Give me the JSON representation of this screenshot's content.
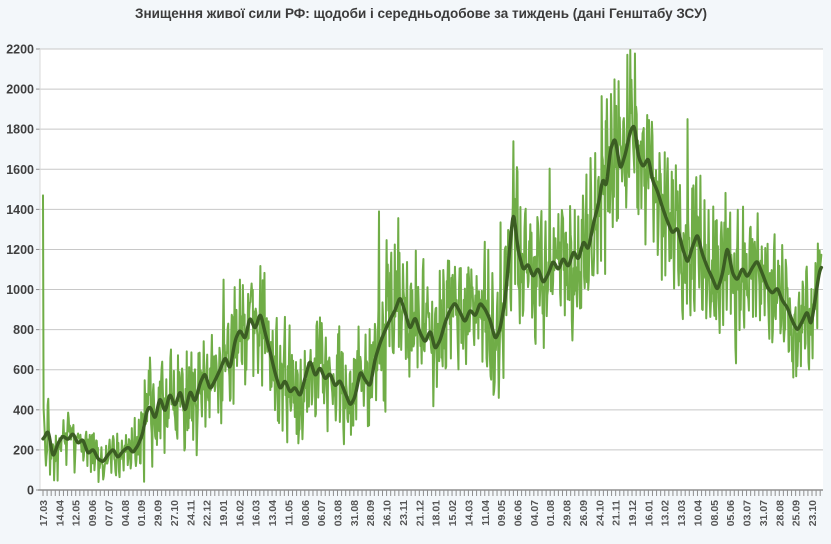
{
  "title": "Знищення живої сили РФ: щодоби і середньодобове за тиждень (дані Генштабу ЗСУ)",
  "colors": {
    "daily_line": "#70ad47",
    "average_line": "#3b5d23",
    "gridline": "#c8c8c8",
    "axis": "#8f8f8f",
    "plot_background": "#ffffff",
    "page_background": "#f3f7fa",
    "y_label": "#3f3f3f",
    "x_label": "#555555",
    "title_text": "#3b3b3b"
  },
  "chart_data": {
    "type": "line",
    "title": "Знищення живої сили РФ: щодоби і середньодобове за тиждень (дані Генштабу ЗСУ)",
    "xlabel": "",
    "ylabel": "",
    "ylim": [
      0,
      2200
    ],
    "y_ticks": [
      0,
      200,
      400,
      600,
      800,
      1000,
      1200,
      1400,
      1600,
      1800,
      2000,
      2200
    ],
    "grid": "horizontal",
    "legend": "none",
    "x_tick_labels": [
      "17.03",
      "14.04",
      "12.05",
      "09.06",
      "07.07",
      "04.08",
      "01.09",
      "29.09",
      "27.10",
      "24.11",
      "22.12",
      "19.01",
      "16.02",
      "16.03",
      "13.04",
      "11.05",
      "08.06",
      "06.07",
      "03.08",
      "31.08",
      "28.09",
      "26.10",
      "23.11",
      "21.12",
      "18.01",
      "15.02",
      "14.03",
      "11.04",
      "09.05",
      "06.06",
      "04.07",
      "01.08",
      "29.08",
      "26.09",
      "24.10",
      "21.11",
      "19.12",
      "16.01",
      "13.02",
      "13.03",
      "10.04",
      "08.05",
      "05.06",
      "03.07",
      "31.07",
      "28.08",
      "25.09",
      "23.10"
    ],
    "x_label_interval_days": 28,
    "x_minor_tick_days": 7,
    "days_total": 1332,
    "series": [
      {
        "name": "щодоби",
        "role": "daily",
        "color": "#70ad47"
      },
      {
        "name": "середньодобове за тиждень",
        "role": "weekly-average",
        "color": "#3b5d23"
      }
    ],
    "weekly_average_points": [
      [
        0,
        250
      ],
      [
        9,
        300
      ],
      [
        17,
        160
      ],
      [
        26,
        235
      ],
      [
        34,
        270
      ],
      [
        43,
        250
      ],
      [
        51,
        285
      ],
      [
        60,
        230
      ],
      [
        68,
        255
      ],
      [
        77,
        180
      ],
      [
        86,
        205
      ],
      [
        94,
        155
      ],
      [
        103,
        140
      ],
      [
        111,
        175
      ],
      [
        120,
        205
      ],
      [
        128,
        160
      ],
      [
        137,
        195
      ],
      [
        146,
        215
      ],
      [
        154,
        185
      ],
      [
        163,
        225
      ],
      [
        171,
        285
      ],
      [
        177,
        390
      ],
      [
        183,
        420
      ],
      [
        192,
        350
      ],
      [
        200,
        465
      ],
      [
        209,
        385
      ],
      [
        217,
        485
      ],
      [
        226,
        415
      ],
      [
        235,
        500
      ],
      [
        243,
        385
      ],
      [
        252,
        500
      ],
      [
        260,
        435
      ],
      [
        269,
        535
      ],
      [
        277,
        585
      ],
      [
        286,
        500
      ],
      [
        295,
        550
      ],
      [
        303,
        600
      ],
      [
        312,
        665
      ],
      [
        320,
        600
      ],
      [
        329,
        750
      ],
      [
        337,
        800
      ],
      [
        346,
        750
      ],
      [
        354,
        865
      ],
      [
        363,
        800
      ],
      [
        372,
        885
      ],
      [
        380,
        785
      ],
      [
        389,
        685
      ],
      [
        397,
        585
      ],
      [
        406,
        500
      ],
      [
        414,
        550
      ],
      [
        423,
        485
      ],
      [
        431,
        515
      ],
      [
        440,
        465
      ],
      [
        449,
        565
      ],
      [
        457,
        650
      ],
      [
        466,
        565
      ],
      [
        474,
        615
      ],
      [
        483,
        550
      ],
      [
        491,
        585
      ],
      [
        500,
        515
      ],
      [
        508,
        550
      ],
      [
        517,
        485
      ],
      [
        526,
        420
      ],
      [
        534,
        465
      ],
      [
        543,
        595
      ],
      [
        551,
        550
      ],
      [
        560,
        515
      ],
      [
        568,
        650
      ],
      [
        577,
        735
      ],
      [
        586,
        800
      ],
      [
        594,
        850
      ],
      [
        603,
        900
      ],
      [
        611,
        965
      ],
      [
        620,
        885
      ],
      [
        628,
        800
      ],
      [
        637,
        865
      ],
      [
        645,
        785
      ],
      [
        654,
        735
      ],
      [
        663,
        800
      ],
      [
        671,
        700
      ],
      [
        680,
        750
      ],
      [
        688,
        835
      ],
      [
        697,
        900
      ],
      [
        705,
        935
      ],
      [
        714,
        885
      ],
      [
        722,
        835
      ],
      [
        731,
        900
      ],
      [
        740,
        865
      ],
      [
        748,
        935
      ],
      [
        757,
        900
      ],
      [
        765,
        850
      ],
      [
        774,
        750
      ],
      [
        782,
        800
      ],
      [
        791,
        950
      ],
      [
        800,
        1245
      ],
      [
        805,
        1400
      ],
      [
        813,
        1195
      ],
      [
        822,
        1095
      ],
      [
        830,
        1130
      ],
      [
        839,
        1060
      ],
      [
        847,
        1110
      ],
      [
        856,
        1030
      ],
      [
        865,
        1080
      ],
      [
        873,
        1145
      ],
      [
        882,
        1095
      ],
      [
        890,
        1160
      ],
      [
        899,
        1110
      ],
      [
        908,
        1195
      ],
      [
        916,
        1145
      ],
      [
        925,
        1245
      ],
      [
        933,
        1195
      ],
      [
        942,
        1330
      ],
      [
        951,
        1430
      ],
      [
        958,
        1560
      ],
      [
        964,
        1505
      ],
      [
        971,
        1700
      ],
      [
        979,
        1760
      ],
      [
        988,
        1595
      ],
      [
        997,
        1680
      ],
      [
        1005,
        1790
      ],
      [
        1012,
        1825
      ],
      [
        1019,
        1660
      ],
      [
        1027,
        1610
      ],
      [
        1036,
        1660
      ],
      [
        1043,
        1545
      ],
      [
        1051,
        1495
      ],
      [
        1060,
        1410
      ],
      [
        1068,
        1345
      ],
      [
        1077,
        1280
      ],
      [
        1086,
        1310
      ],
      [
        1094,
        1210
      ],
      [
        1103,
        1130
      ],
      [
        1111,
        1210
      ],
      [
        1120,
        1280
      ],
      [
        1128,
        1180
      ],
      [
        1137,
        1110
      ],
      [
        1145,
        1060
      ],
      [
        1154,
        995
      ],
      [
        1163,
        1080
      ],
      [
        1171,
        1220
      ],
      [
        1180,
        1080
      ],
      [
        1188,
        1045
      ],
      [
        1197,
        1110
      ],
      [
        1205,
        1060
      ],
      [
        1214,
        1110
      ],
      [
        1222,
        1145
      ],
      [
        1231,
        1080
      ],
      [
        1240,
        1010
      ],
      [
        1248,
        980
      ],
      [
        1257,
        1010
      ],
      [
        1265,
        945
      ],
      [
        1274,
        910
      ],
      [
        1282,
        845
      ],
      [
        1291,
        795
      ],
      [
        1300,
        845
      ],
      [
        1308,
        895
      ],
      [
        1314,
        815
      ],
      [
        1321,
        940
      ],
      [
        1328,
        1080
      ],
      [
        1332,
        1120
      ]
    ],
    "daily_volatility": [
      [
        0,
        130
      ],
      [
        30,
        140
      ],
      [
        70,
        100
      ],
      [
        100,
        85
      ],
      [
        140,
        105
      ],
      [
        170,
        160
      ],
      [
        185,
        200
      ],
      [
        250,
        210
      ],
      [
        300,
        240
      ],
      [
        355,
        265
      ],
      [
        400,
        250
      ],
      [
        450,
        240
      ],
      [
        510,
        230
      ],
      [
        545,
        225
      ],
      [
        570,
        250
      ],
      [
        600,
        300
      ],
      [
        640,
        320
      ],
      [
        690,
        300
      ],
      [
        740,
        280
      ],
      [
        780,
        270
      ],
      [
        800,
        340
      ],
      [
        830,
        310
      ],
      [
        880,
        300
      ],
      [
        930,
        320
      ],
      [
        960,
        350
      ],
      [
        1010,
        360
      ],
      [
        1060,
        330
      ],
      [
        1110,
        310
      ],
      [
        1160,
        290
      ],
      [
        1210,
        270
      ],
      [
        1260,
        240
      ],
      [
        1300,
        215
      ],
      [
        1332,
        170
      ]
    ],
    "daily_spikes": [
      [
        0,
        1470
      ],
      [
        575,
        1390
      ],
      [
        805,
        1740
      ],
      [
        965,
        1950
      ],
      [
        985,
        2040
      ],
      [
        1005,
        2195
      ],
      [
        1103,
        1850
      ],
      [
        1326,
        1230
      ]
    ]
  }
}
